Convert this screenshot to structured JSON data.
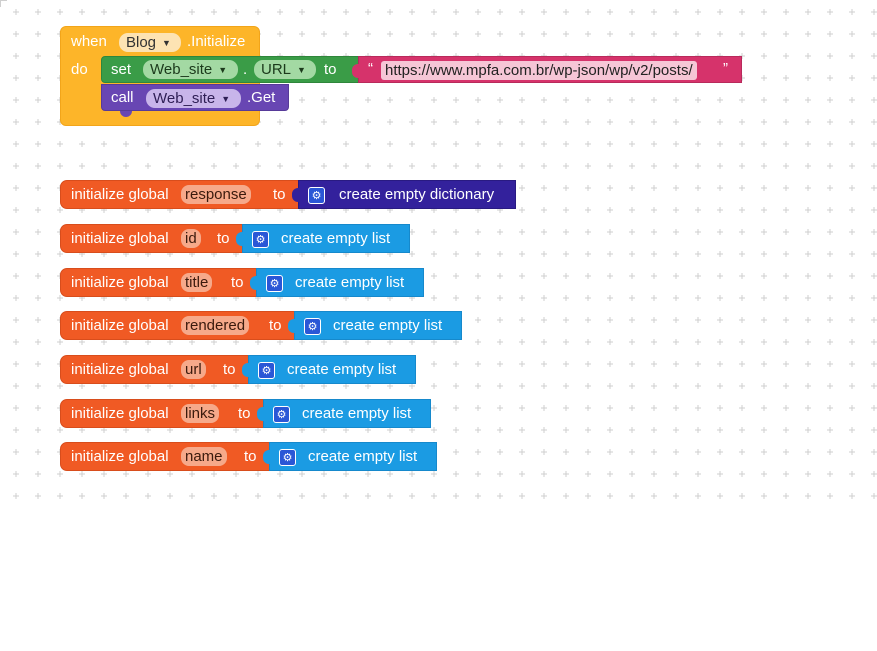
{
  "event_block": {
    "when_label": "when",
    "component": "Blog",
    "event": ".Initialize",
    "do_label": "do"
  },
  "set_block": {
    "set_label": "set",
    "component": "Web_site",
    "dot": ".",
    "property": "URL",
    "to_label": "to"
  },
  "text_block": {
    "open_quote": "“",
    "value": "https://www.mpfa.com.br/wp-json/wp/v2/posts/",
    "close_quote": "”"
  },
  "call_block": {
    "call_label": "call",
    "component": "Web_site",
    "method": ".Get"
  },
  "globals": [
    {
      "prefix": "initialize global",
      "name": "response",
      "to_label": "to",
      "value_label": "create empty dictionary",
      "value_type": "dictionary"
    },
    {
      "prefix": "initialize global",
      "name": "id",
      "to_label": "to",
      "value_label": "create empty list",
      "value_type": "list"
    },
    {
      "prefix": "initialize global",
      "name": "title",
      "to_label": "to",
      "value_label": "create empty list",
      "value_type": "list"
    },
    {
      "prefix": "initialize global",
      "name": "rendered",
      "to_label": "to",
      "value_label": "create empty list",
      "value_type": "list"
    },
    {
      "prefix": "initialize global",
      "name": "url",
      "to_label": "to",
      "value_label": "create empty list",
      "value_type": "list"
    },
    {
      "prefix": "initialize global",
      "name": "links",
      "to_label": "to",
      "value_label": "create empty list",
      "value_type": "list"
    },
    {
      "prefix": "initialize global",
      "name": "name",
      "to_label": "to",
      "value_label": "create empty list",
      "value_type": "list"
    }
  ],
  "icons": {
    "dropdown": "dropdown-arrow-icon",
    "mutator": "gear-icon"
  },
  "colors": {
    "event": "#fdb529",
    "set": "#3a9c47",
    "text": "#d6336b",
    "call": "#6846b3",
    "init": "#f05a24",
    "list": "#1b9be3",
    "dictionary": "#33219c"
  }
}
